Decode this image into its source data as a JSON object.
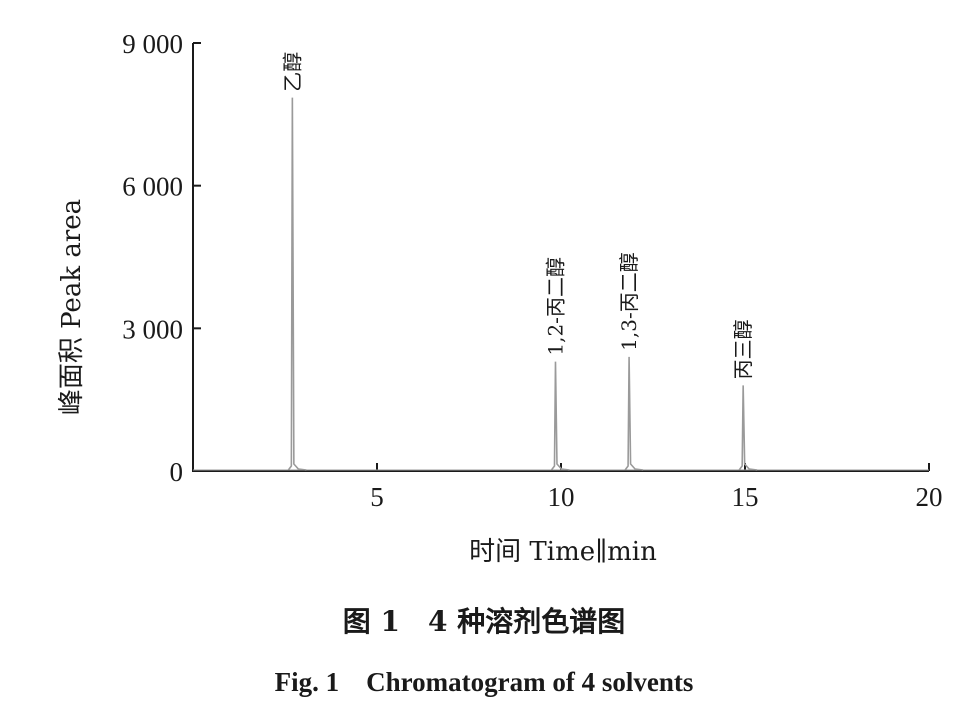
{
  "chart_data": {
    "type": "line",
    "xlabel": "时间 Time∥min",
    "ylabel": "峰面积 Peak area",
    "xlim": [
      0,
      20
    ],
    "ylim": [
      0,
      9000
    ],
    "x_ticks": [
      5,
      10,
      15,
      20
    ],
    "x_tick_labels": [
      "5",
      "10",
      "15",
      "20"
    ],
    "y_ticks": [
      0,
      3000,
      6000,
      9000
    ],
    "y_tick_labels": [
      "0",
      "3 000",
      "6 000",
      "9 000"
    ],
    "grid": false,
    "line_color": "#9a9a9a",
    "peaks": [
      {
        "label": "乙醇",
        "rt": 2.7,
        "height": 7850
      },
      {
        "label": "1,2-丙二醇",
        "rt": 9.85,
        "height": 2300
      },
      {
        "label": "1,3-丙二醇",
        "rt": 11.85,
        "height": 2400
      },
      {
        "label": "丙三醇",
        "rt": 14.95,
        "height": 1800
      }
    ]
  },
  "caption": {
    "chinese": "图 1　4 种溶剂色谱图",
    "english": "Fig. 1　Chromatogram of 4 solvents"
  }
}
